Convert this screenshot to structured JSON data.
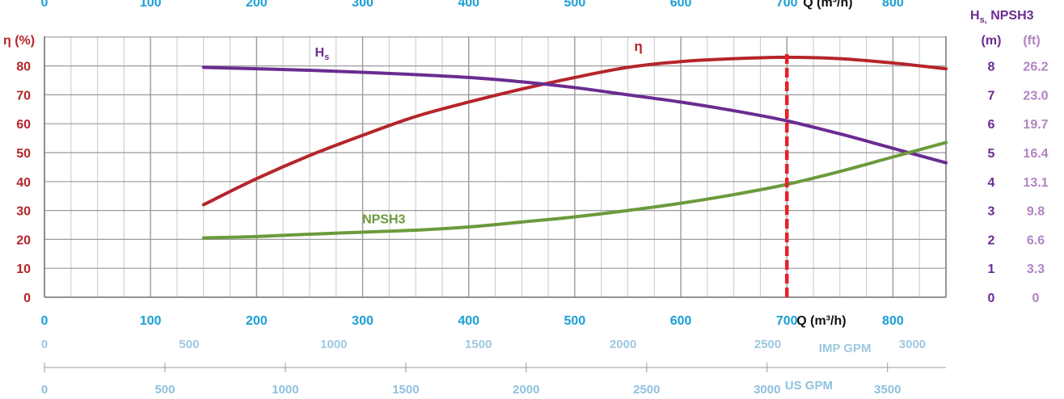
{
  "colors": {
    "eta": "#b5252b",
    "hs": "#6a2c91",
    "npsh": "#6c9a3c",
    "flow_axis": "#1a9fd6",
    "imp_axis": "#9cc9e0",
    "us_axis": "#8fc1de",
    "marker": "#e8202a",
    "ft_axis": "#b184c2",
    "grid": "#c8c8c8",
    "grid_major": "#9a9a9a"
  },
  "chart_data": {
    "type": "line",
    "x_label": "Q (m³/h)",
    "xlim": [
      0,
      850
    ],
    "x_ticks": [
      0,
      100,
      200,
      300,
      400,
      500,
      600,
      700,
      800
    ],
    "top_x_ticks": [
      "0",
      "100",
      "200",
      "300",
      "400",
      "500",
      "600",
      "700",
      "800"
    ],
    "top_x_label": "Q (m³/h)",
    "left_axis": {
      "label": "η (%)",
      "ylim": [
        0,
        85
      ],
      "ticks": [
        0,
        10,
        20,
        30,
        40,
        50,
        60,
        70,
        80
      ]
    },
    "right_axis": {
      "title": "H",
      "title_sub": "s,",
      "title_rest": " NPSH3",
      "unit_m": "(m)",
      "unit_ft": "(ft)",
      "ticks_m": [
        "0",
        "1",
        "2",
        "3",
        "4",
        "5",
        "6",
        "7",
        "8"
      ],
      "ticks_ft": [
        "0",
        "3.3",
        "6.6",
        "9.8",
        "13.1",
        "16.4",
        "19.7",
        "23.0",
        "26.2"
      ]
    },
    "imp_gpm_axis": {
      "label": "IMP GPM",
      "ticks": [
        "0",
        "500",
        "1000",
        "1500",
        "2000",
        "2500",
        "3000"
      ]
    },
    "us_gpm_axis": {
      "label": "US GPM",
      "ticks": [
        "0",
        "500",
        "1000",
        "1500",
        "2000",
        "2500",
        "3000",
        "3500"
      ]
    },
    "marker_q": 700,
    "series": [
      {
        "name": "η",
        "key": "eta",
        "x": [
          150,
          200,
          250,
          300,
          350,
          400,
          450,
          500,
          550,
          600,
          650,
          700,
          750,
          800,
          850
        ],
        "y": [
          32,
          41,
          49,
          56,
          62.5,
          67.5,
          72,
          76,
          79.5,
          81.5,
          82.5,
          83,
          82.5,
          81,
          79
        ]
      },
      {
        "name": "H",
        "name_sub": "s",
        "key": "hs",
        "x": [
          150,
          200,
          250,
          300,
          350,
          400,
          450,
          500,
          550,
          600,
          650,
          700,
          750,
          800,
          850
        ],
        "y": [
          7.95,
          7.9,
          7.85,
          7.78,
          7.7,
          7.6,
          7.45,
          7.25,
          7.0,
          6.75,
          6.45,
          6.1,
          5.65,
          5.15,
          4.65
        ]
      },
      {
        "name": "NPSH3",
        "key": "npsh",
        "x": [
          150,
          200,
          250,
          300,
          350,
          400,
          450,
          500,
          550,
          600,
          650,
          700,
          750,
          800,
          850
        ],
        "y": [
          2.05,
          2.1,
          2.18,
          2.25,
          2.32,
          2.43,
          2.6,
          2.78,
          3.0,
          3.25,
          3.55,
          3.9,
          4.35,
          4.85,
          5.35
        ]
      }
    ]
  }
}
